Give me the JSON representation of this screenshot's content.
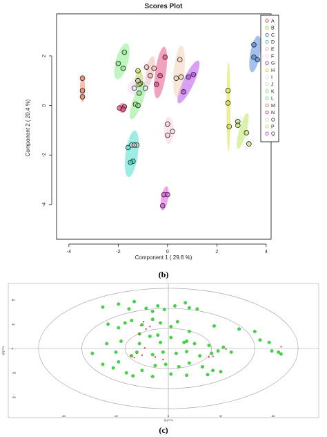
{
  "captions": {
    "b": "(b)",
    "c": "(c)"
  },
  "chart_data": [
    {
      "type": "scatter",
      "title": "Scores Plot",
      "xlabel": "Component 1 ( 29.8 %)",
      "ylabel": "Component 2 ( 20.4 %)",
      "xlim": [
        -4.5,
        4.2
      ],
      "ylim": [
        -5.4,
        3.7
      ],
      "xticks": [
        "-4",
        "-2",
        "0",
        "2",
        "4"
      ],
      "xtick_values": [
        -4,
        -2,
        0,
        2,
        4
      ],
      "yticks": [
        "-4",
        "-2",
        "0",
        "2"
      ],
      "ytick_values": [
        -4,
        -2,
        0,
        2
      ],
      "legend_position": "top-right",
      "groups": [
        {
          "name": "A",
          "color": "#e8306b",
          "points": [
            [
              -1.95,
              -0.1
            ],
            [
              -1.75,
              -0.05
            ],
            [
              -1.8,
              -0.15
            ]
          ],
          "ellipse": {
            "cx": -1.83,
            "cy": -0.1,
            "rx": 0.15,
            "ry": 0.2,
            "angle": 0
          }
        },
        {
          "name": "B",
          "color": "#a4d11a",
          "points": [
            [
              -1.2,
              1.0
            ],
            [
              -1.1,
              0.9
            ],
            [
              -1.2,
              1.4
            ],
            [
              -1.15,
              0.85
            ]
          ],
          "ellipse": {
            "cx": -1.16,
            "cy": 1.04,
            "rx": 0.16,
            "ry": 0.35,
            "angle": 5
          }
        },
        {
          "name": "C",
          "color": "#3a73d8",
          "points": [
            [
              3.5,
              2.45
            ],
            [
              3.5,
              1.95
            ],
            [
              3.65,
              1.85
            ]
          ],
          "ellipse": {
            "cx": 3.55,
            "cy": 2.08,
            "rx": 0.2,
            "ry": 0.75,
            "angle": 10
          }
        },
        {
          "name": "D",
          "color": "#27d6c4",
          "points": [
            [
              -1.6,
              -1.7
            ],
            [
              -1.4,
              -2.25
            ],
            [
              -1.5,
              -2.3
            ],
            [
              -1.35,
              -1.6
            ]
          ],
          "ellipse": {
            "cx": -1.45,
            "cy": -1.95,
            "rx": 0.25,
            "ry": 0.95,
            "angle": 8
          }
        },
        {
          "name": "E",
          "color": "#f0a8a0",
          "points": [
            [
              -0.55,
              1.5
            ],
            [
              -0.7,
              1.2
            ],
            [
              -0.85,
              1.55
            ]
          ],
          "ellipse": {
            "cx": -0.7,
            "cy": 1.4,
            "rx": 0.16,
            "ry": 0.6,
            "angle": 10
          }
        },
        {
          "name": "F",
          "color": "#f6c8d8",
          "points": [
            [
              0.0,
              -0.75
            ],
            [
              0.2,
              -1.05
            ],
            [
              0.0,
              -1.2
            ]
          ],
          "ellipse": {
            "cx": 0.05,
            "cy": -1.0,
            "rx": 0.2,
            "ry": 0.55,
            "angle": 0
          }
        },
        {
          "name": "G",
          "color": "#a92fe6",
          "points": [
            [
              0.85,
              1.15
            ],
            [
              1.05,
              1.25
            ],
            [
              0.65,
              0.55
            ]
          ],
          "ellipse": {
            "cx": 0.85,
            "cy": 0.95,
            "rx": 0.22,
            "ry": 0.95,
            "angle": 25
          }
        },
        {
          "name": "H",
          "color": "#d8d820",
          "points": [
            [
              2.45,
              0.6
            ],
            [
              2.45,
              0.1
            ],
            [
              2.5,
              -0.85
            ]
          ],
          "ellipse": {
            "cx": 2.47,
            "cy": -0.05,
            "rx": 0.08,
            "ry": 1.8,
            "angle": 0
          }
        },
        {
          "name": "I",
          "color": "#e9d9ef",
          "points": [
            [
              -1.35,
              0.7
            ],
            [
              -0.9,
              0.7
            ],
            [
              -1.2,
              1.0
            ]
          ],
          "ellipse": {
            "cx": -1.15,
            "cy": 0.8,
            "rx": 0.35,
            "ry": 0.5,
            "angle": 60
          }
        },
        {
          "name": "J",
          "color": "#d0d0d0",
          "points": [
            [
              -1.45,
              -1.6
            ],
            [
              -1.25,
              -1.6
            ],
            [
              -1.35,
              -1.6
            ]
          ],
          "ellipse": null
        },
        {
          "name": "K",
          "color": "#74e874",
          "points": [
            [
              -1.75,
              2.15
            ],
            [
              -2.0,
              1.7
            ],
            [
              -1.8,
              1.5
            ]
          ],
          "ellipse": {
            "cx": -1.85,
            "cy": 1.78,
            "rx": 0.25,
            "ry": 0.75,
            "angle": 15
          }
        },
        {
          "name": "L",
          "color": "#74e874",
          "points": [
            [
              -1.3,
              0.05
            ],
            [
              -1.15,
              0.5
            ],
            [
              -1.2,
              0.0
            ]
          ],
          "ellipse": {
            "cx": -1.2,
            "cy": 0.2,
            "rx": 0.2,
            "ry": 0.8,
            "angle": 20
          }
        },
        {
          "name": "M",
          "color": "#e87050",
          "points": [
            [
              -3.45,
              1.1
            ],
            [
              -3.45,
              0.6
            ],
            [
              -3.45,
              0.35
            ]
          ],
          "ellipse": {
            "cx": -3.45,
            "cy": 0.68,
            "rx": 0.1,
            "ry": 0.55,
            "angle": 0
          }
        },
        {
          "name": "N",
          "color": "#e03070",
          "points": [
            [
              -0.1,
              1.95
            ],
            [
              -0.3,
              1.2
            ],
            [
              -0.45,
              0.85
            ]
          ],
          "ellipse": {
            "cx": -0.28,
            "cy": 1.33,
            "rx": 0.22,
            "ry": 1.05,
            "angle": 8
          }
        },
        {
          "name": "O",
          "color": "#f0c8a8",
          "points": [
            [
              0.35,
              1.1
            ],
            [
              0.5,
              1.85
            ],
            [
              0.55,
              1.15
            ]
          ],
          "ellipse": {
            "cx": 0.47,
            "cy": 1.37,
            "rx": 0.22,
            "ry": 1.05,
            "angle": 5
          }
        },
        {
          "name": "P",
          "color": "#b0e040",
          "points": [
            [
              2.85,
              -0.65
            ],
            [
              3.2,
              -1.1
            ],
            [
              3.3,
              -1.55
            ],
            [
              2.85,
              -0.8
            ]
          ],
          "ellipse": {
            "cx": 3.05,
            "cy": -1.03,
            "rx": 0.15,
            "ry": 0.75,
            "angle": 15
          }
        },
        {
          "name": "Q",
          "color": "#d838d8",
          "points": [
            [
              0.0,
              -3.6
            ],
            [
              -0.15,
              -3.6
            ],
            [
              -0.2,
              -4.05
            ]
          ],
          "ellipse": {
            "cx": -0.12,
            "cy": -3.75,
            "rx": 0.14,
            "ry": 0.5,
            "angle": 10
          }
        }
      ]
    },
    {
      "type": "scatter",
      "title": "",
      "xlabel": "t[1] P%",
      "ylabel": "t[2] P%",
      "xlim": [
        -100,
        100
      ],
      "ylim": [
        -100,
        100
      ],
      "xticks": [
        "-80",
        "-40",
        "0",
        "40",
        "80"
      ],
      "xtick_values": [
        -80,
        -40,
        0,
        40,
        80
      ],
      "yticks": [
        "80",
        "40",
        "0",
        "-40",
        "-80"
      ],
      "ytick_values": [
        80,
        40,
        0,
        -40,
        -80
      ],
      "hotelling_ellipses": [
        0.99,
        0.66,
        0.33
      ],
      "series": [
        {
          "name": "",
          "color": "#3ddc3d",
          "points": [
            [
              -50,
              68
            ],
            [
              -38,
              73
            ],
            [
              -30,
              65
            ],
            [
              -26,
              77
            ],
            [
              -17,
              66
            ],
            [
              -12,
              61
            ],
            [
              -8,
              70
            ],
            [
              -3,
              64
            ],
            [
              5,
              70
            ],
            [
              13,
              75
            ],
            [
              16,
              67
            ],
            [
              22,
              65
            ],
            [
              -46,
              40
            ],
            [
              -38,
              34
            ],
            [
              -33,
              42
            ],
            [
              -28,
              46
            ],
            [
              -20,
              39
            ],
            [
              -12,
              48
            ],
            [
              -6,
              42
            ],
            [
              2,
              36
            ],
            [
              7,
              44
            ],
            [
              16,
              28
            ],
            [
              35,
              37
            ],
            [
              54,
              32
            ],
            [
              66,
              28
            ],
            [
              -22,
              24
            ],
            [
              -14,
              20
            ],
            [
              -8,
              22
            ],
            [
              14,
              12
            ],
            [
              -47,
              8
            ],
            [
              -36,
              12
            ],
            [
              -22,
              8
            ],
            [
              -6,
              10
            ],
            [
              2,
              18
            ],
            [
              12,
              10
            ],
            [
              20,
              8
            ],
            [
              31,
              5
            ],
            [
              42,
              2
            ],
            [
              70,
              14
            ],
            [
              77,
              10
            ],
            [
              -58,
              -8
            ],
            [
              -40,
              -6
            ],
            [
              -28,
              -12
            ],
            [
              -24,
              -6
            ],
            [
              -12,
              -10
            ],
            [
              -4,
              -6
            ],
            [
              6,
              -8
            ],
            [
              14,
              -5
            ],
            [
              24,
              -12
            ],
            [
              33,
              -8
            ],
            [
              38,
              -4
            ],
            [
              48,
              -6
            ],
            [
              79,
              -4
            ],
            [
              84,
              -6
            ],
            [
              86,
              -9
            ],
            [
              -50,
              -26
            ],
            [
              -42,
              -32
            ],
            [
              -38,
              -22
            ],
            [
              -32,
              -40
            ],
            [
              -20,
              -36
            ],
            [
              -10,
              -28
            ],
            [
              -2,
              -26
            ],
            [
              8,
              -30
            ],
            [
              16,
              -24
            ],
            [
              26,
              -30
            ],
            [
              34,
              -36
            ],
            [
              -27,
              -45
            ],
            [
              -12,
              -46
            ],
            [
              2,
              -42
            ],
            [
              14,
              -44
            ],
            [
              30,
              -43
            ],
            [
              40,
              -38
            ]
          ]
        },
        {
          "name": "",
          "color": "#e23a3a",
          "points": [
            [
              -19,
              44
            ],
            [
              -21,
              38
            ],
            [
              -17,
              32
            ],
            [
              -14,
              36
            ],
            [
              -18,
              1
            ],
            [
              -24,
              -8
            ],
            [
              -26,
              -15
            ],
            [
              -20,
              -11
            ],
            [
              -10,
              -14
            ],
            [
              -4,
              -18
            ],
            [
              31,
              -14
            ],
            [
              34,
              -13
            ],
            [
              44,
              -1
            ],
            [
              86,
              3
            ],
            [
              -29,
              -12
            ],
            [
              -22,
              24
            ]
          ]
        }
      ]
    }
  ]
}
